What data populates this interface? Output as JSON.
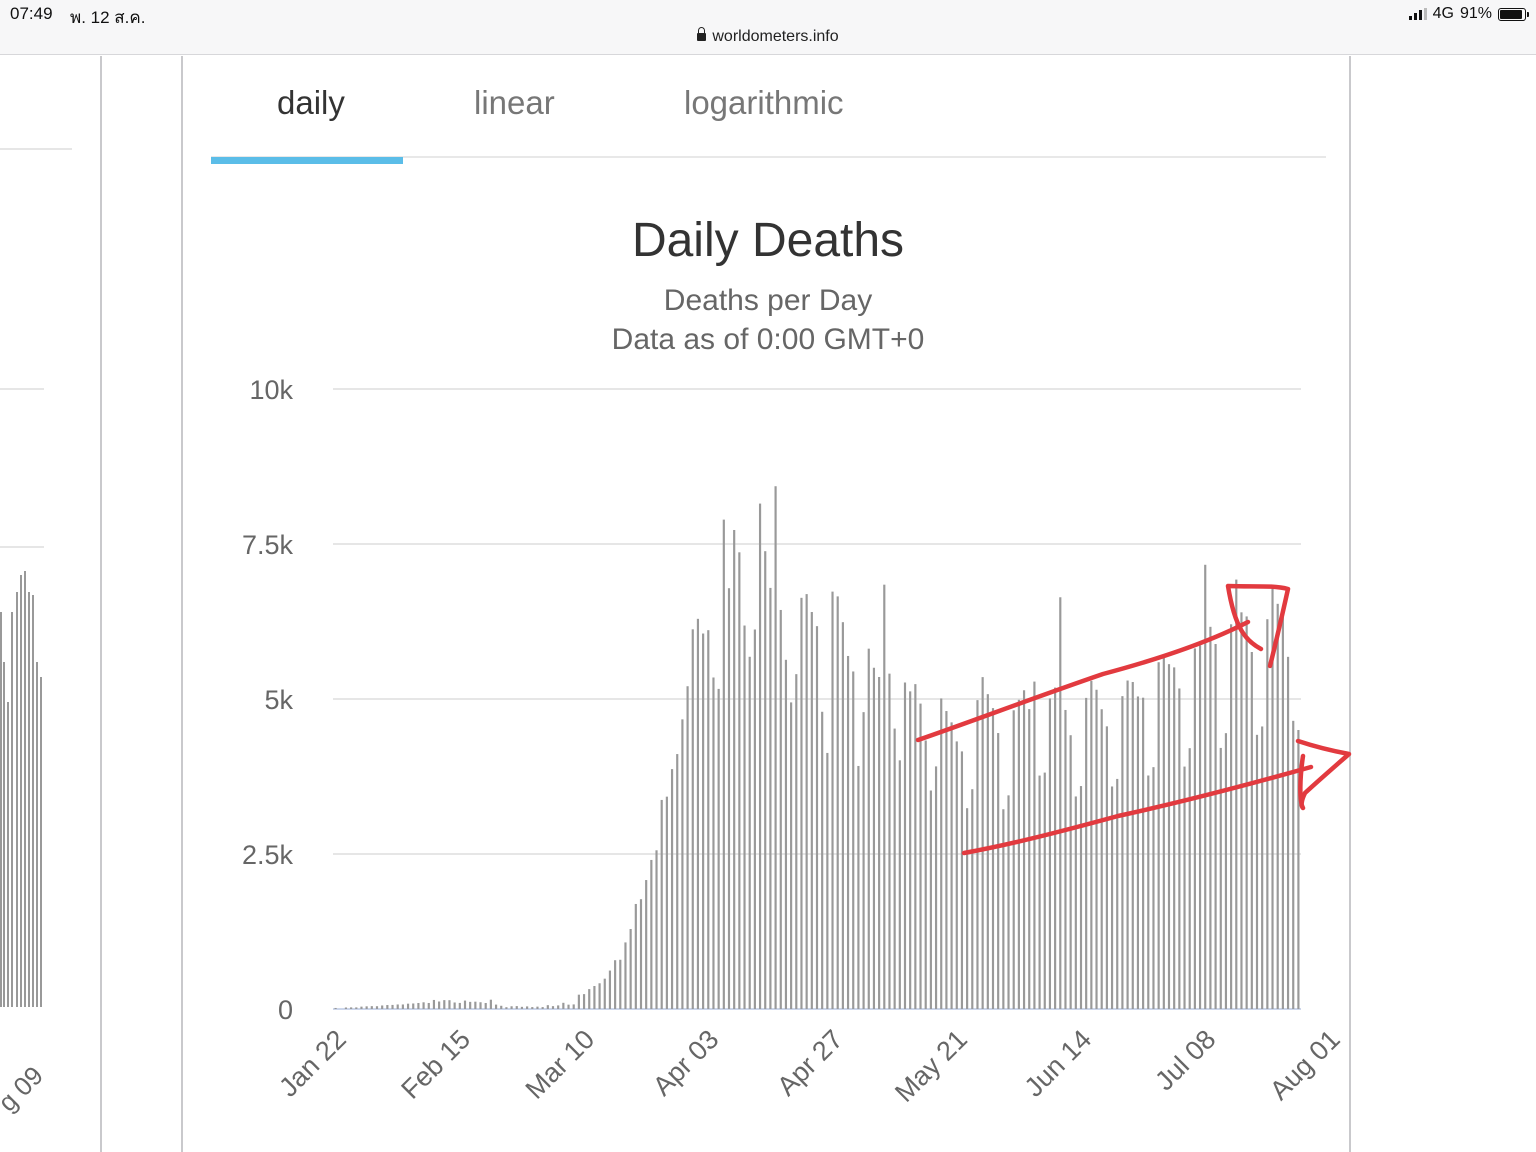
{
  "status_bar": {
    "time": "07:49",
    "date": "พ. 12 ส.ค.",
    "url": "worldometers.info",
    "network": "4G",
    "battery": "91%"
  },
  "left_panel": {
    "axis_label": "g 09"
  },
  "tabs": [
    {
      "label": "daily"
    },
    {
      "label": "linear"
    },
    {
      "label": "logarithmic"
    }
  ],
  "colors": {
    "bar": "#999999",
    "tab_indicator": "#5bbde8",
    "annotation": "#e23a3f"
  },
  "chart_data": {
    "type": "bar",
    "title": "Daily Deaths",
    "subtitle_lines": [
      "Deaths per Day",
      "Data as of 0:00 GMT+0"
    ],
    "xlabel": "",
    "ylabel": "",
    "ylim": [
      0,
      10000
    ],
    "y_ticks": [
      {
        "value": 0,
        "label": "0"
      },
      {
        "value": 2500,
        "label": "2.5k"
      },
      {
        "value": 5000,
        "label": "5k"
      },
      {
        "value": 7500,
        "label": "7.5k"
      },
      {
        "value": 10000,
        "label": "10k"
      }
    ],
    "x_start": "2020-01-22",
    "x_ticks": [
      "Jan 22",
      "Feb 15",
      "Mar 10",
      "Apr 03",
      "Apr 27",
      "May 21",
      "Jun 14",
      "Jul 08",
      "Aug 01"
    ],
    "grid": true,
    "legend": "none",
    "values": [
      17,
      0,
      24,
      26,
      26,
      38,
      43,
      46,
      45,
      57,
      64,
      66,
      73,
      73,
      86,
      89,
      97,
      108,
      97,
      146,
      121,
      143,
      142,
      105,
      98,
      136,
      115,
      118,
      109,
      97,
      150,
      71,
      52,
      29,
      44,
      47,
      35,
      42,
      31,
      38,
      31,
      62,
      46,
      58,
      100,
      70,
      74,
      231,
      240,
      321,
      371,
      415,
      489,
      620,
      787,
      794,
      1074,
      1290,
      1694,
      1771,
      2080,
      2404,
      2560,
      3372,
      3425,
      3869,
      4112,
      4672,
      5206,
      6124,
      6293,
      6056,
      6110,
      5347,
      5163,
      7893,
      6787,
      7726,
      7366,
      6185,
      5681,
      6121,
      8152,
      7384,
      6792,
      8432,
      6436,
      5632,
      4945,
      5401,
      6632,
      6692,
      6403,
      6175,
      4794,
      4130,
      6732,
      6655,
      6239,
      5694,
      5444,
      3920,
      4788,
      5812,
      5504,
      5355,
      6844,
      5409,
      4523,
      4011,
      5266,
      5123,
      5240,
      4926,
      4331,
      3524,
      3913,
      5008,
      4806,
      4623,
      4316,
      4155,
      3239,
      3545,
      4982,
      5353,
      5078,
      4853,
      4451,
      3222,
      3446,
      4818,
      4988,
      5141,
      4837,
      5281,
      3765,
      3813,
      5008,
      5184,
      6641,
      4823,
      4416,
      3428,
      3596,
      5018,
      5294,
      5149,
      4835,
      4559,
      3589,
      3711,
      5046,
      5298,
      5274,
      5041,
      5021,
      3766,
      3901,
      5593,
      5690,
      5562,
      5510,
      5170,
      3910,
      4207,
      5816,
      5863,
      7165,
      6164,
      5887,
      4211,
      4449,
      6205,
      6926,
      6398,
      6332,
      5758,
      4422,
      4557,
      6287,
      6805,
      6535,
      6357,
      5680,
      4648,
      4500
    ]
  }
}
